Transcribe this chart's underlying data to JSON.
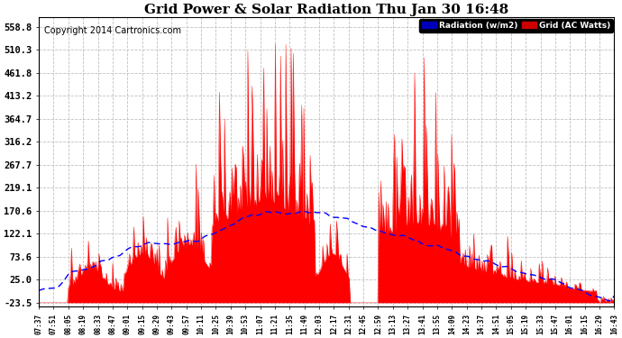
{
  "title": "Grid Power & Solar Radiation Thu Jan 30 16:48",
  "copyright": "Copyright 2014 Cartronics.com",
  "legend_labels": [
    "Radiation (w/m2)",
    "Grid (AC Watts)"
  ],
  "yticks": [
    558.8,
    510.3,
    461.8,
    413.2,
    364.7,
    316.2,
    267.7,
    219.1,
    170.6,
    122.1,
    73.6,
    25.0,
    -23.5
  ],
  "ymin": -23.5,
  "ymax": 558.8,
  "xtick_labels": [
    "07:37",
    "07:51",
    "08:05",
    "08:19",
    "08:33",
    "08:47",
    "09:01",
    "09:15",
    "09:29",
    "09:43",
    "09:57",
    "10:11",
    "10:25",
    "10:39",
    "10:53",
    "11:07",
    "11:21",
    "11:35",
    "11:49",
    "12:03",
    "12:17",
    "12:31",
    "12:45",
    "12:59",
    "13:13",
    "13:27",
    "13:41",
    "13:55",
    "14:09",
    "14:23",
    "14:37",
    "14:51",
    "15:05",
    "15:19",
    "15:33",
    "15:47",
    "16:01",
    "16:15",
    "16:29",
    "16:43"
  ],
  "background_color": "#ffffff",
  "plot_bg_color": "#ffffff",
  "grid_color": "#c0c0c0",
  "title_fontsize": 11,
  "copyright_fontsize": 7,
  "red_color": "#ff0000",
  "blue_color": "#0000ff"
}
